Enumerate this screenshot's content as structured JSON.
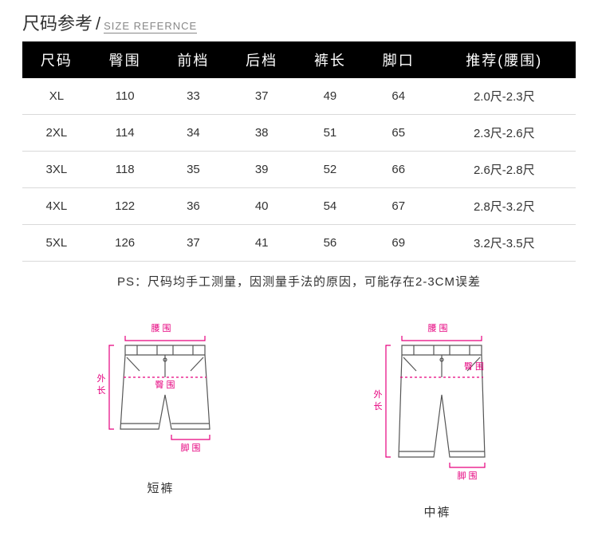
{
  "title": {
    "cn": "尺码参考",
    "en": "SIZE REFERNCE"
  },
  "table": {
    "columns": [
      "尺码",
      "臀围",
      "前档",
      "后档",
      "裤长",
      "脚口",
      "推荐(腰围)"
    ],
    "rows": [
      [
        "XL",
        "110",
        "33",
        "37",
        "49",
        "64",
        "2.0尺-2.3尺"
      ],
      [
        "2XL",
        "114",
        "34",
        "38",
        "51",
        "65",
        "2.3尺-2.6尺"
      ],
      [
        "3XL",
        "118",
        "35",
        "39",
        "52",
        "66",
        "2.6尺-2.8尺"
      ],
      [
        "4XL",
        "122",
        "36",
        "40",
        "54",
        "67",
        "2.8尺-3.2尺"
      ],
      [
        "5XL",
        "126",
        "37",
        "41",
        "56",
        "69",
        "3.2尺-3.5尺"
      ]
    ],
    "header_bg": "#000000",
    "header_color": "#ffffff",
    "row_border": "#d9d9d9",
    "cell_color": "#333333"
  },
  "ps": "PS：尺码均手工测量，因测量手法的原因，可能存在2-3CM误差",
  "diagrams": {
    "left_caption": "短裤",
    "right_caption": "中裤",
    "labels": {
      "waist": "腰 围",
      "hip": "臀 围",
      "outseam_a": "外",
      "outseam_b": "长",
      "leg": "脚 围"
    },
    "outline_color": "#555555",
    "measure_color": "#e6007e"
  }
}
